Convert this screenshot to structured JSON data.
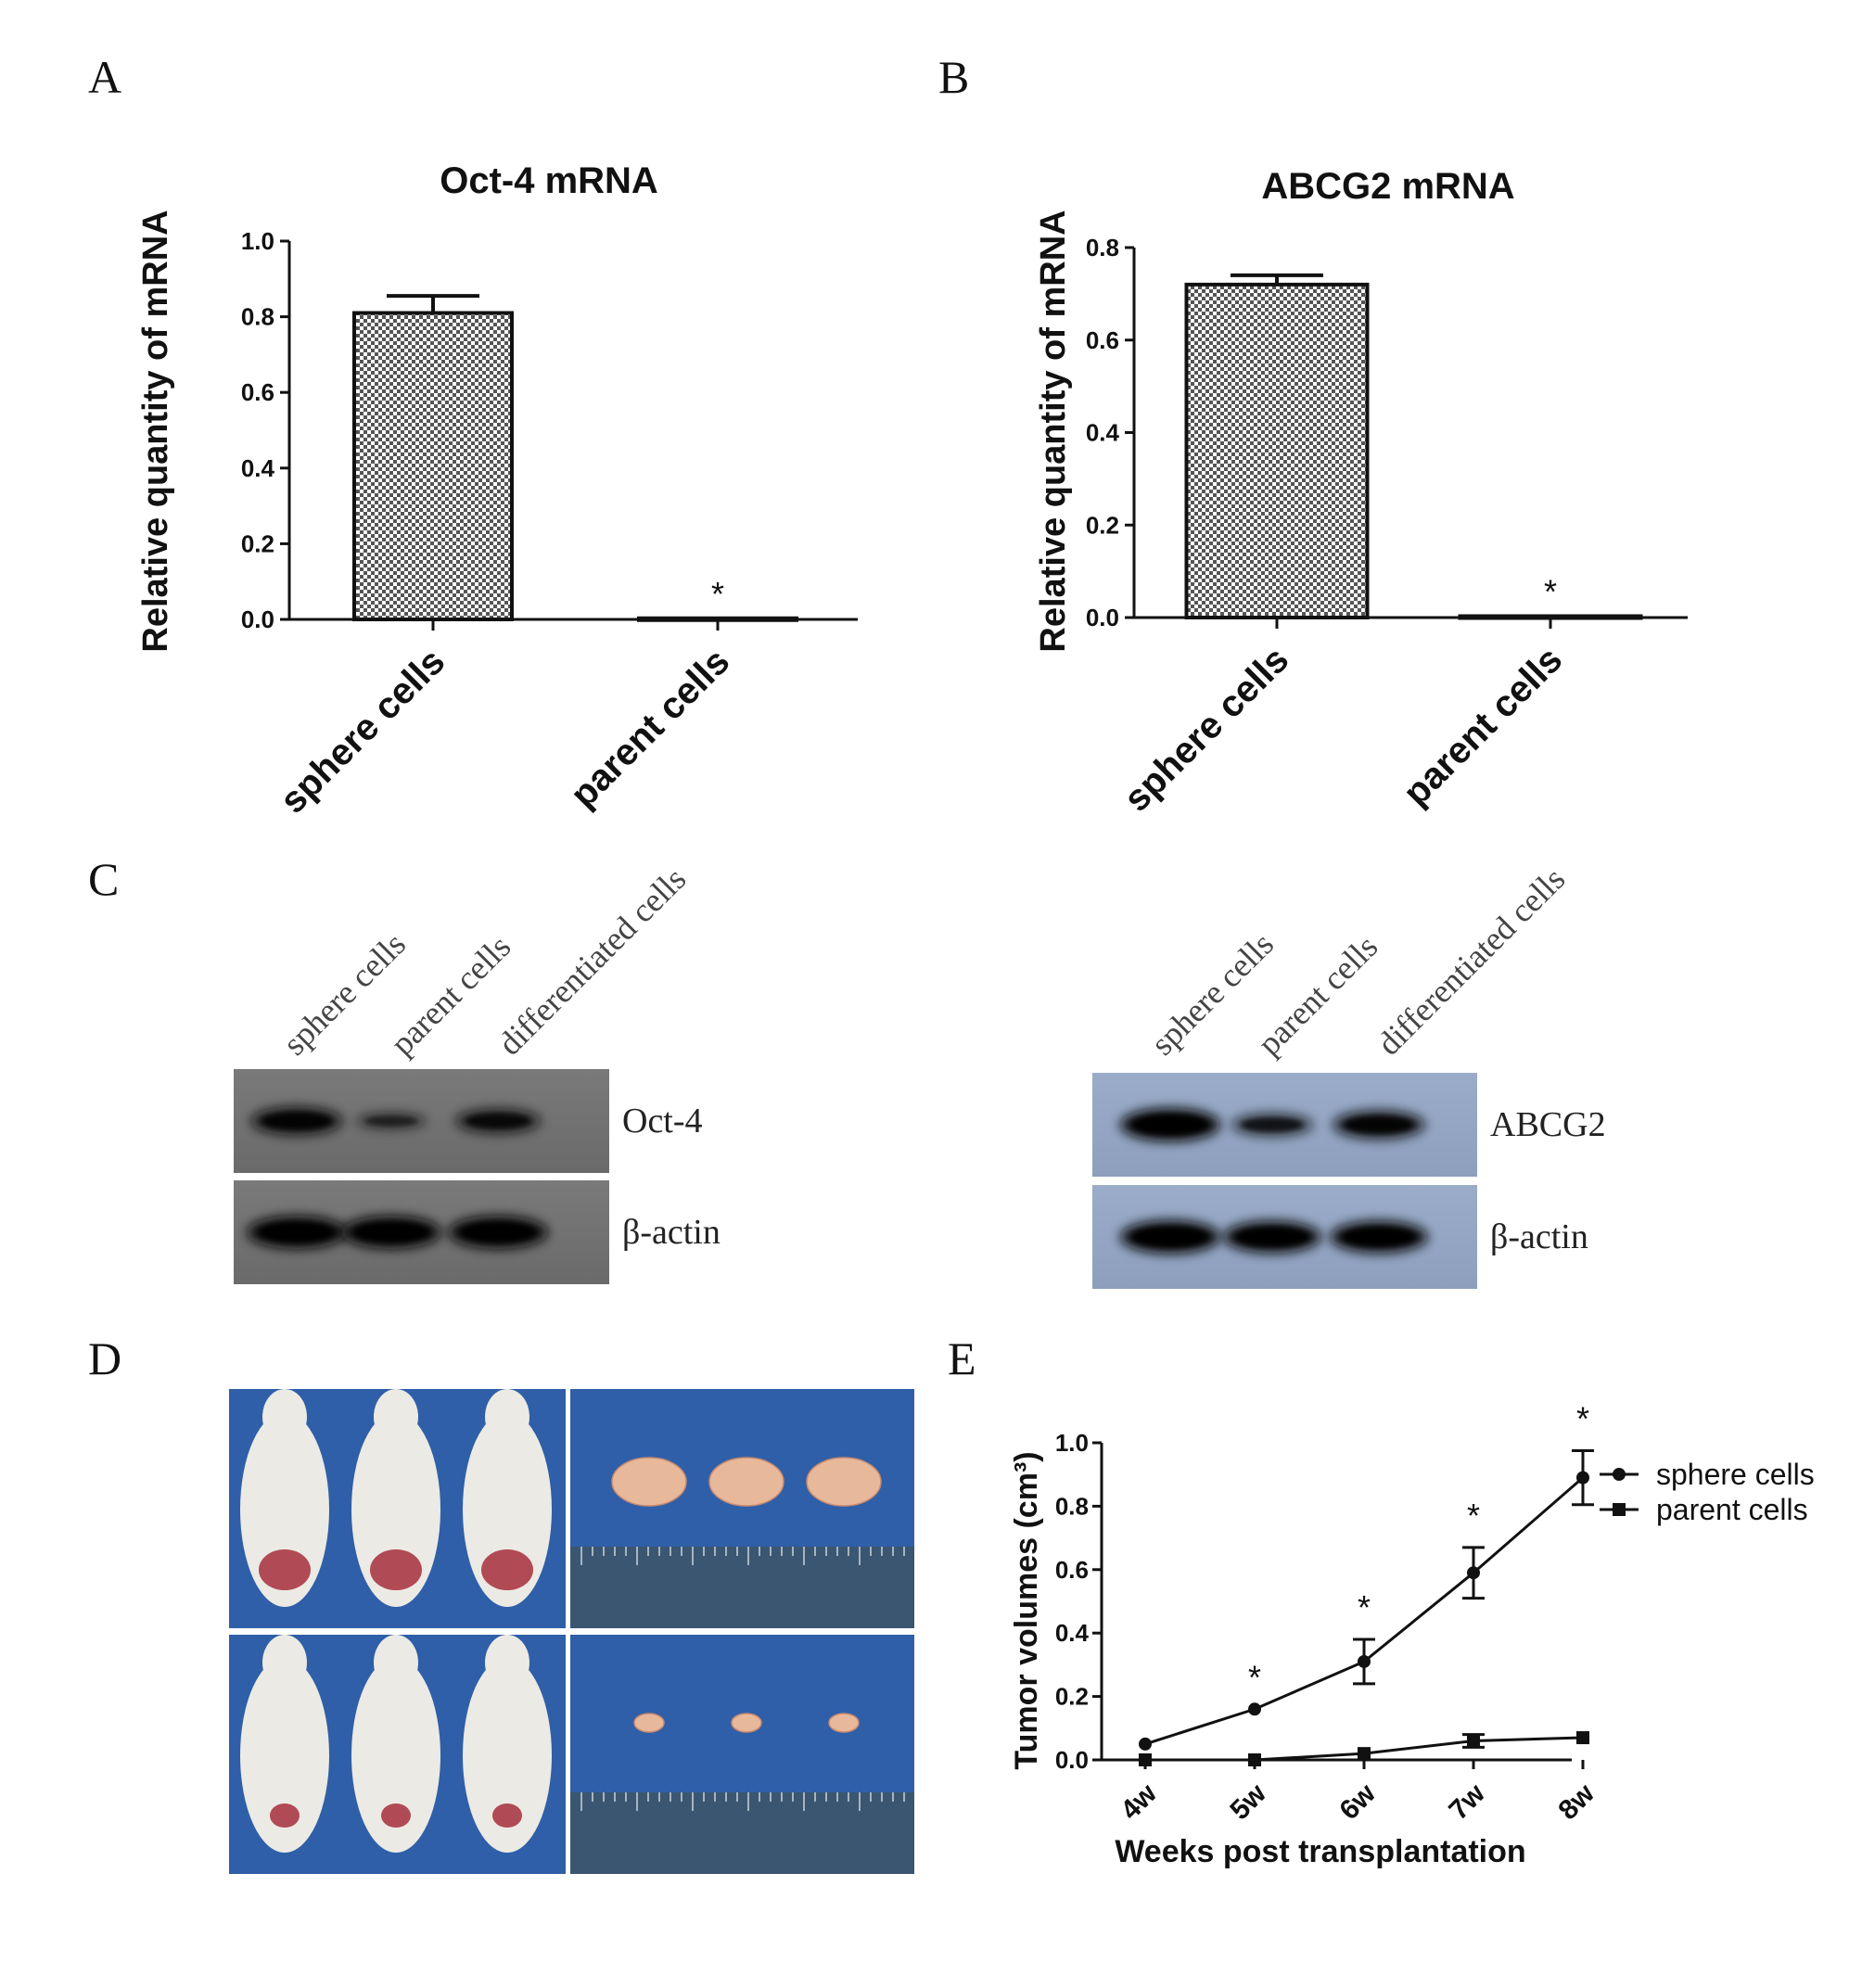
{
  "panel_letters": {
    "a": "A",
    "b": "B",
    "c": "C",
    "d": "D",
    "e": "E"
  },
  "star": "*",
  "chart_data": [
    {
      "panel": "A",
      "type": "bar",
      "title": "Oct-4 mRNA",
      "ylabel": "Relative quantity of mRNA",
      "categories": [
        "sphere cells",
        "parent cells"
      ],
      "values": [
        0.81,
        0.003
      ],
      "errors": [
        0.045,
        0.0
      ],
      "yticks": [
        "0.0",
        "0.2",
        "0.4",
        "0.6",
        "0.8",
        "1.0"
      ],
      "ylim": [
        0,
        1.0
      ],
      "significance": [
        "",
        "*"
      ]
    },
    {
      "panel": "B",
      "type": "bar",
      "title": "ABCG2 mRNA",
      "ylabel": "Relative quantity of mRNA",
      "categories": [
        "sphere cells",
        "parent cells"
      ],
      "values": [
        0.72,
        0.003
      ],
      "errors": [
        0.02,
        0.0
      ],
      "yticks": [
        "0.0",
        "0.2",
        "0.4",
        "0.6",
        "0.8"
      ],
      "ylim": [
        0,
        0.8
      ],
      "significance": [
        "",
        "*"
      ]
    },
    {
      "panel": "E",
      "type": "line",
      "ylabel": "Tumor volumes (cm³)",
      "xlabel": "Weeks post transplantation",
      "categories": [
        "4w",
        "5w",
        "6w",
        "7w",
        "8w"
      ],
      "yticks": [
        "0.0",
        "0.2",
        "0.4",
        "0.6",
        "0.8",
        "1.0"
      ],
      "ylim": [
        0,
        1.0
      ],
      "legend_position": "right",
      "series": [
        {
          "name": "sphere cells",
          "marker": "circle",
          "values": [
            0.05,
            0.16,
            0.31,
            0.59,
            0.89
          ],
          "errors": [
            0.0,
            0.0,
            0.07,
            0.08,
            0.085
          ]
        },
        {
          "name": "parent cells",
          "marker": "square",
          "values": [
            0.0,
            0.0,
            0.02,
            0.06,
            0.07
          ],
          "errors": [
            0.0,
            0.0,
            0.0,
            0.02,
            0.0
          ]
        }
      ],
      "significance": [
        "",
        "*",
        "*",
        "*",
        "*"
      ]
    }
  ],
  "western_blots": {
    "left": {
      "lanes": [
        "sphere cells",
        "parent cells",
        "differentiated cells"
      ],
      "rows": [
        {
          "label": "Oct-4",
          "band_intensity": [
            0.8,
            0.3,
            0.65
          ]
        },
        {
          "label": "β-actin",
          "band_intensity": [
            1.0,
            1.0,
            1.0
          ]
        }
      ]
    },
    "right": {
      "lanes": [
        "sphere cells",
        "parent cells",
        "differentiated cells"
      ],
      "rows": [
        {
          "label": "ABCG2",
          "band_intensity": [
            1.0,
            0.55,
            0.8
          ]
        },
        {
          "label": "β-actin",
          "band_intensity": [
            1.0,
            0.95,
            0.95
          ]
        }
      ]
    }
  },
  "photos": {
    "mice_count_per_group": 3,
    "tumors_count_per_group": 3,
    "colors": {
      "background": "#2f5fa8",
      "mouse": "#eceae4",
      "tumor": "#e8b89a"
    }
  }
}
